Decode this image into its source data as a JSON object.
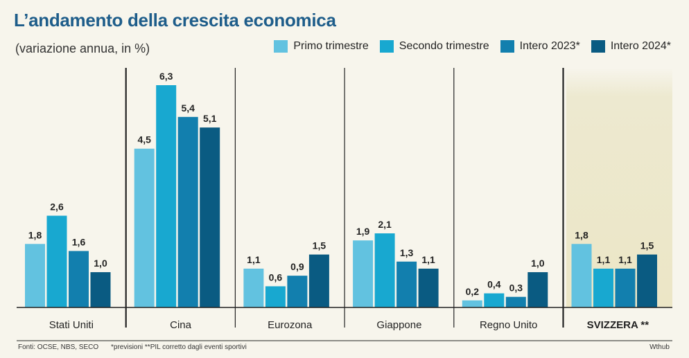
{
  "chart_data": {
    "type": "bar",
    "title": "L’andamento della crescita economica",
    "subtitle": "(variazione annua, in %)",
    "categories": [
      "Stati Uniti",
      "Cina",
      "Eurozona",
      "Giappone",
      "Regno Unito",
      "SVIZZERA **"
    ],
    "series": [
      {
        "name": "Primo trimestre",
        "color": "#62c2e0",
        "values": [
          1.8,
          4.5,
          1.1,
          1.9,
          0.2,
          1.8
        ]
      },
      {
        "name": "Secondo trimestre",
        "color": "#18a8d0",
        "values": [
          2.6,
          6.3,
          0.6,
          2.1,
          0.4,
          1.1
        ]
      },
      {
        "name": "Intero 2023*",
        "color": "#127fae",
        "values": [
          1.6,
          5.4,
          0.9,
          1.3,
          0.3,
          1.1
        ]
      },
      {
        "name": "Intero 2024*",
        "color": "#0a5b82",
        "values": [
          1.0,
          5.1,
          1.5,
          1.1,
          1.0,
          1.5
        ]
      }
    ],
    "value_labels": [
      [
        "1,8",
        "4,5",
        "1,1",
        "1,9",
        "0,2",
        "1,8"
      ],
      [
        "2,6",
        "6,3",
        "0,6",
        "2,1",
        "0,4",
        "1,1"
      ],
      [
        "1,6",
        "5,4",
        "0,9",
        "1,3",
        "0,3",
        "1,1"
      ],
      [
        "1,0",
        "5,1",
        "1,5",
        "1,1",
        "1,0",
        "1,5"
      ]
    ],
    "ylim": [
      0,
      6.3
    ],
    "legend_position": "top-right"
  },
  "footer": {
    "sources": "Fonti: OCSE, NBS, SECO",
    "notes": "*previsioni  **PIL corretto dagli eventi sportivi",
    "credit": "Wthub"
  }
}
